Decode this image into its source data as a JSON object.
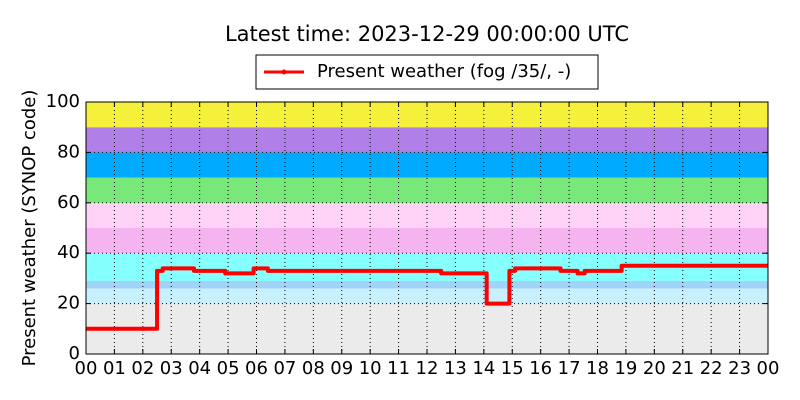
{
  "chart_data": {
    "type": "line",
    "title": "Latest time: 2023-12-29 00:00:00 UTC",
    "y_label": "Present weather (SYNOP code)",
    "xlim": [
      0,
      24
    ],
    "xticks": [
      {
        "value": 0,
        "label": "00"
      },
      {
        "value": 1,
        "label": "01"
      },
      {
        "value": 2,
        "label": "02"
      },
      {
        "value": 3,
        "label": "03"
      },
      {
        "value": 4,
        "label": "04"
      },
      {
        "value": 5,
        "label": "05"
      },
      {
        "value": 6,
        "label": "06"
      },
      {
        "value": 7,
        "label": "07"
      },
      {
        "value": 8,
        "label": "08"
      },
      {
        "value": 9,
        "label": "09"
      },
      {
        "value": 10,
        "label": "10"
      },
      {
        "value": 11,
        "label": "11"
      },
      {
        "value": 12,
        "label": "12"
      },
      {
        "value": 13,
        "label": "13"
      },
      {
        "value": 14,
        "label": "14"
      },
      {
        "value": 15,
        "label": "15"
      },
      {
        "value": 16,
        "label": "16"
      },
      {
        "value": 17,
        "label": "17"
      },
      {
        "value": 18,
        "label": "18"
      },
      {
        "value": 19,
        "label": "19"
      },
      {
        "value": 20,
        "label": "20"
      },
      {
        "value": 21,
        "label": "21"
      },
      {
        "value": 22,
        "label": "22"
      },
      {
        "value": 23,
        "label": "23"
      },
      {
        "value": 24,
        "label": "00"
      }
    ],
    "ylim": [
      0,
      100
    ],
    "yticks": [
      0,
      20,
      40,
      60,
      80,
      100
    ],
    "grid": true,
    "bands": [
      {
        "from": 0,
        "to": 20,
        "color": "#ebebeb"
      },
      {
        "from": 20,
        "to": 26,
        "color": "#c8f0ff"
      },
      {
        "from": 26,
        "to": 29,
        "color": "#9fd3f7"
      },
      {
        "from": 29,
        "to": 40,
        "color": "#86ffff"
      },
      {
        "from": 40,
        "to": 50,
        "color": "#f5b3f0"
      },
      {
        "from": 50,
        "to": 60,
        "color": "#ffd2f8"
      },
      {
        "from": 60,
        "to": 70,
        "color": "#78e87a"
      },
      {
        "from": 70,
        "to": 80,
        "color": "#00aaff"
      },
      {
        "from": 80,
        "to": 90,
        "color": "#b080e8"
      },
      {
        "from": 90,
        "to": 100,
        "color": "#f5f03a"
      }
    ],
    "legend": "top",
    "series": [
      {
        "name": "Present weather (fog /35/, -)",
        "color": "#ff0000",
        "x": [
          0,
          2.5,
          2.5,
          2.7,
          2.7,
          3.8,
          3.8,
          4.9,
          4.9,
          5.9,
          5.9,
          6.4,
          6.4,
          12.5,
          12.5,
          14.1,
          14.1,
          14.9,
          14.9,
          15.1,
          15.1,
          16.7,
          16.7,
          17.3,
          17.3,
          17.55,
          17.55,
          18.85,
          18.85,
          24
        ],
        "values": [
          10,
          10,
          33,
          33,
          34,
          34,
          33,
          33,
          32,
          32,
          34,
          34,
          33,
          33,
          32,
          32,
          20,
          20,
          33,
          33,
          34,
          34,
          33,
          33,
          32,
          32,
          33,
          33,
          35,
          35
        ]
      }
    ]
  }
}
